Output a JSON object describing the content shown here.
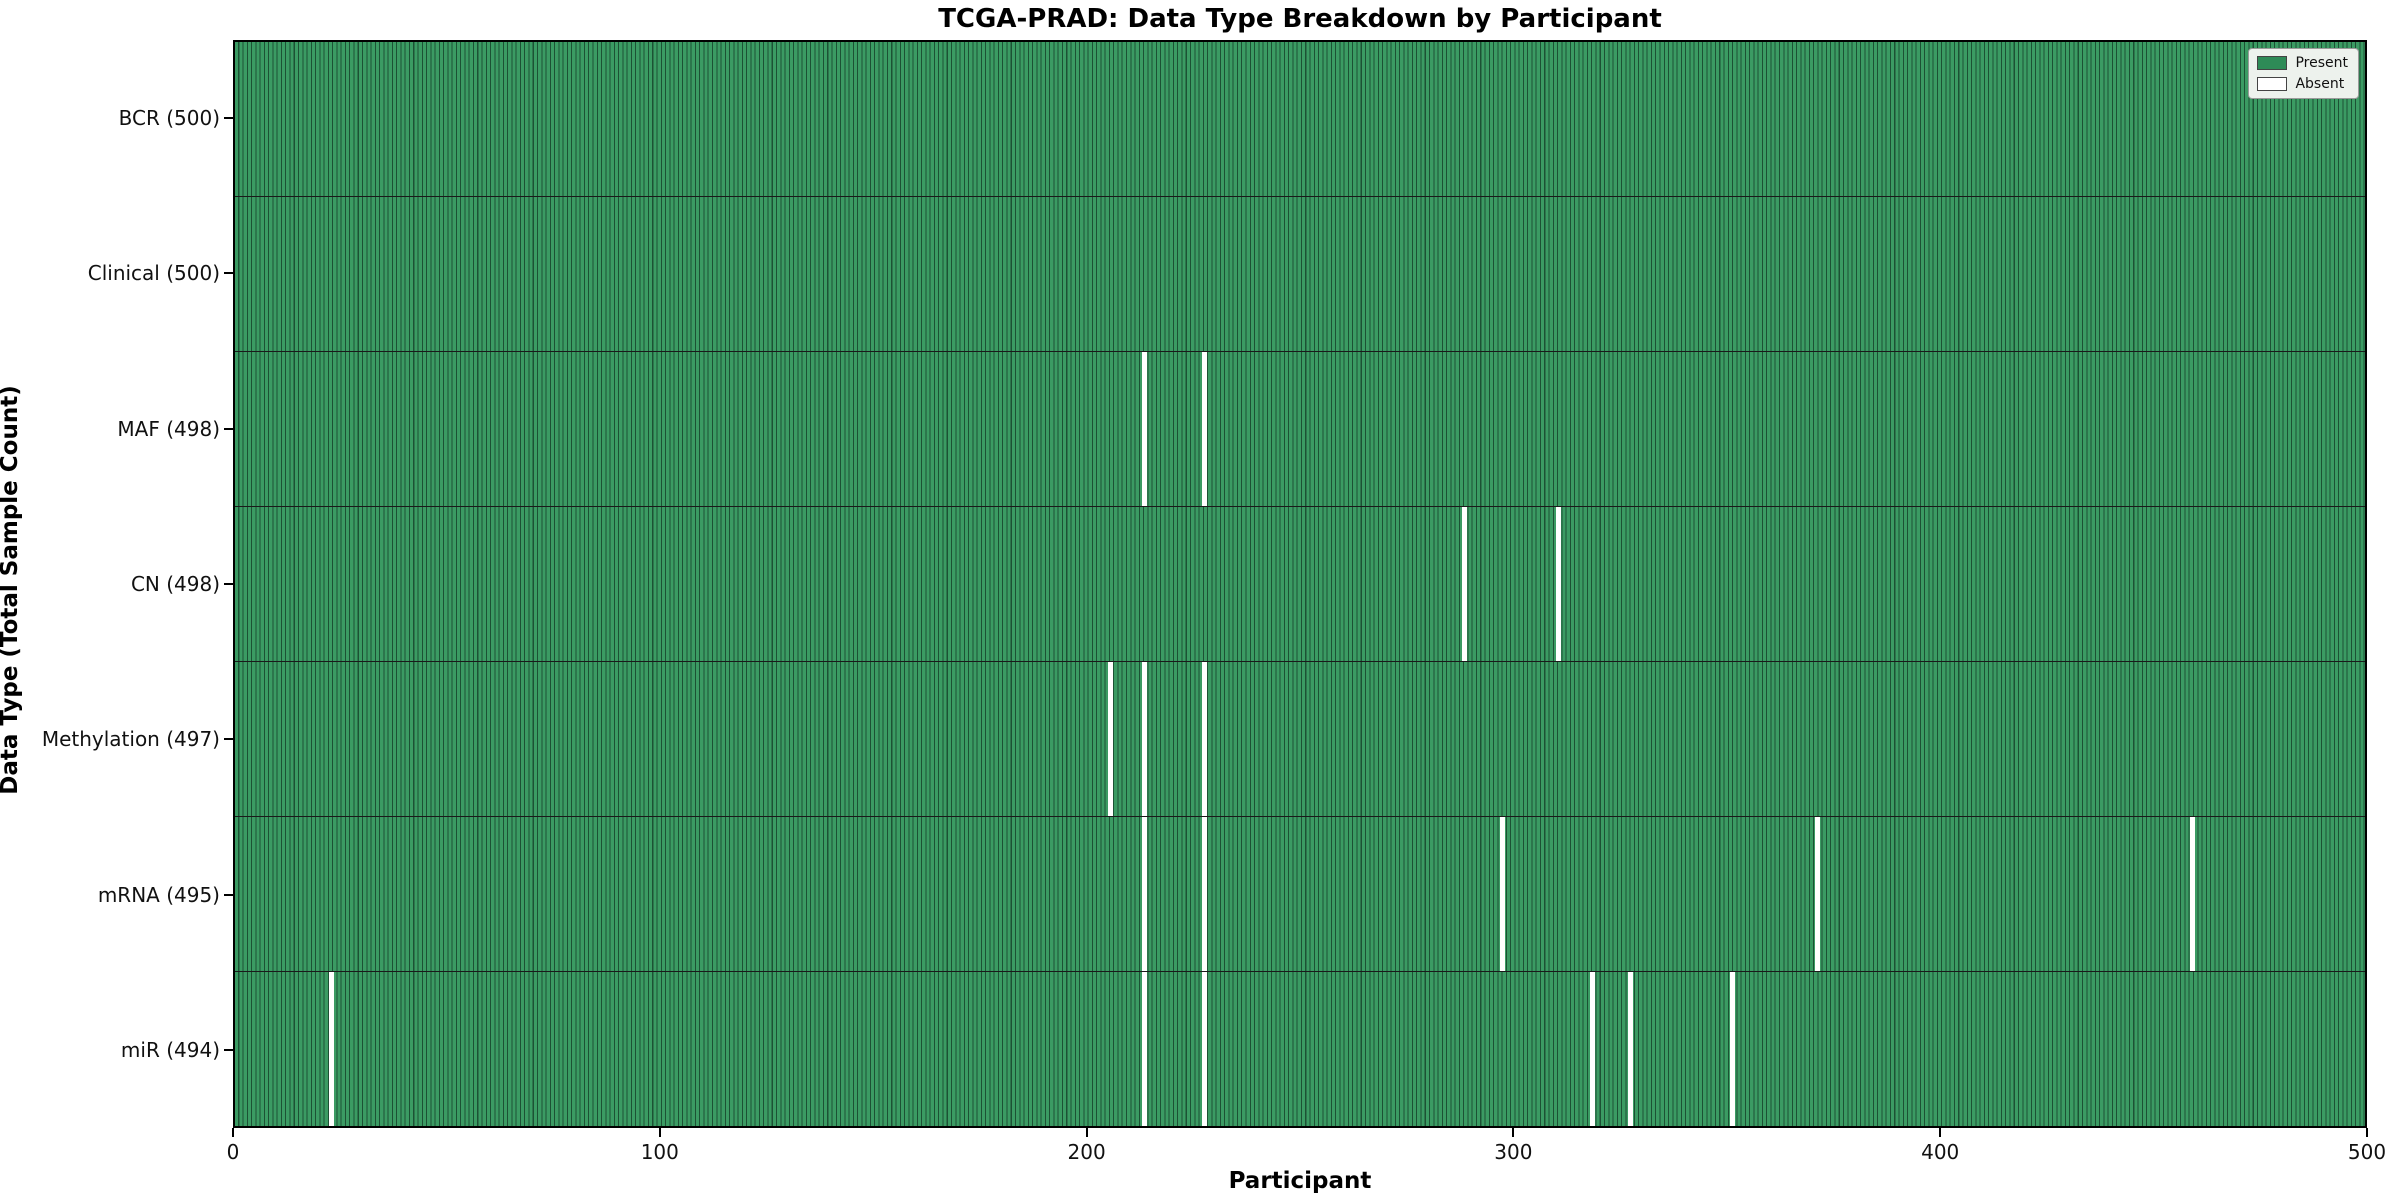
{
  "figure": {
    "title": "TCGA-PRAD: Data Type Breakdown by Participant",
    "xlabel": "Participant",
    "ylabel": "Data Type (Total Sample Count)"
  },
  "legend": {
    "present_label": "Present",
    "absent_label": "Absent"
  },
  "chart_data": {
    "type": "heatmap",
    "title": "TCGA-PRAD: Data Type Breakdown by Participant",
    "xlabel": "Participant",
    "ylabel": "Data Type (Total Sample Count)",
    "x_axis": {
      "min": 0,
      "max": 500,
      "ticks": [
        0,
        100,
        200,
        300,
        400,
        500
      ]
    },
    "legend": [
      {
        "label": "Present",
        "color": "#2e8b57"
      },
      {
        "label": "Absent",
        "color": "#ffffff"
      }
    ],
    "legend_position": "upper right",
    "grid": false,
    "rows": [
      {
        "label": "BCR (500)",
        "name": "BCR",
        "total": 500,
        "absent_participants": []
      },
      {
        "label": "Clinical (500)",
        "name": "Clinical",
        "total": 500,
        "absent_participants": []
      },
      {
        "label": "MAF (498)",
        "name": "MAF",
        "total": 498,
        "absent_participants": [
          213,
          227
        ]
      },
      {
        "label": "CN (498)",
        "name": "CN",
        "total": 498,
        "absent_participants": [
          288,
          310
        ]
      },
      {
        "label": "Methylation (497)",
        "name": "Methylation",
        "total": 497,
        "absent_participants": [
          205,
          213,
          227
        ]
      },
      {
        "label": "mRNA (495)",
        "name": "mRNA",
        "total": 495,
        "absent_participants": [
          213,
          227,
          297,
          371,
          459
        ]
      },
      {
        "label": "miR (494)",
        "name": "miR",
        "total": 494,
        "absent_participants": [
          22,
          213,
          227,
          318,
          327,
          351
        ]
      }
    ],
    "colors": {
      "present_light": "#3b9b63",
      "bar_edge": "#1c5134",
      "absent": "#ffffff",
      "row_separator": "#1a1a1a",
      "legend_present": "#2e8b57",
      "legend_border": "#444444"
    }
  }
}
